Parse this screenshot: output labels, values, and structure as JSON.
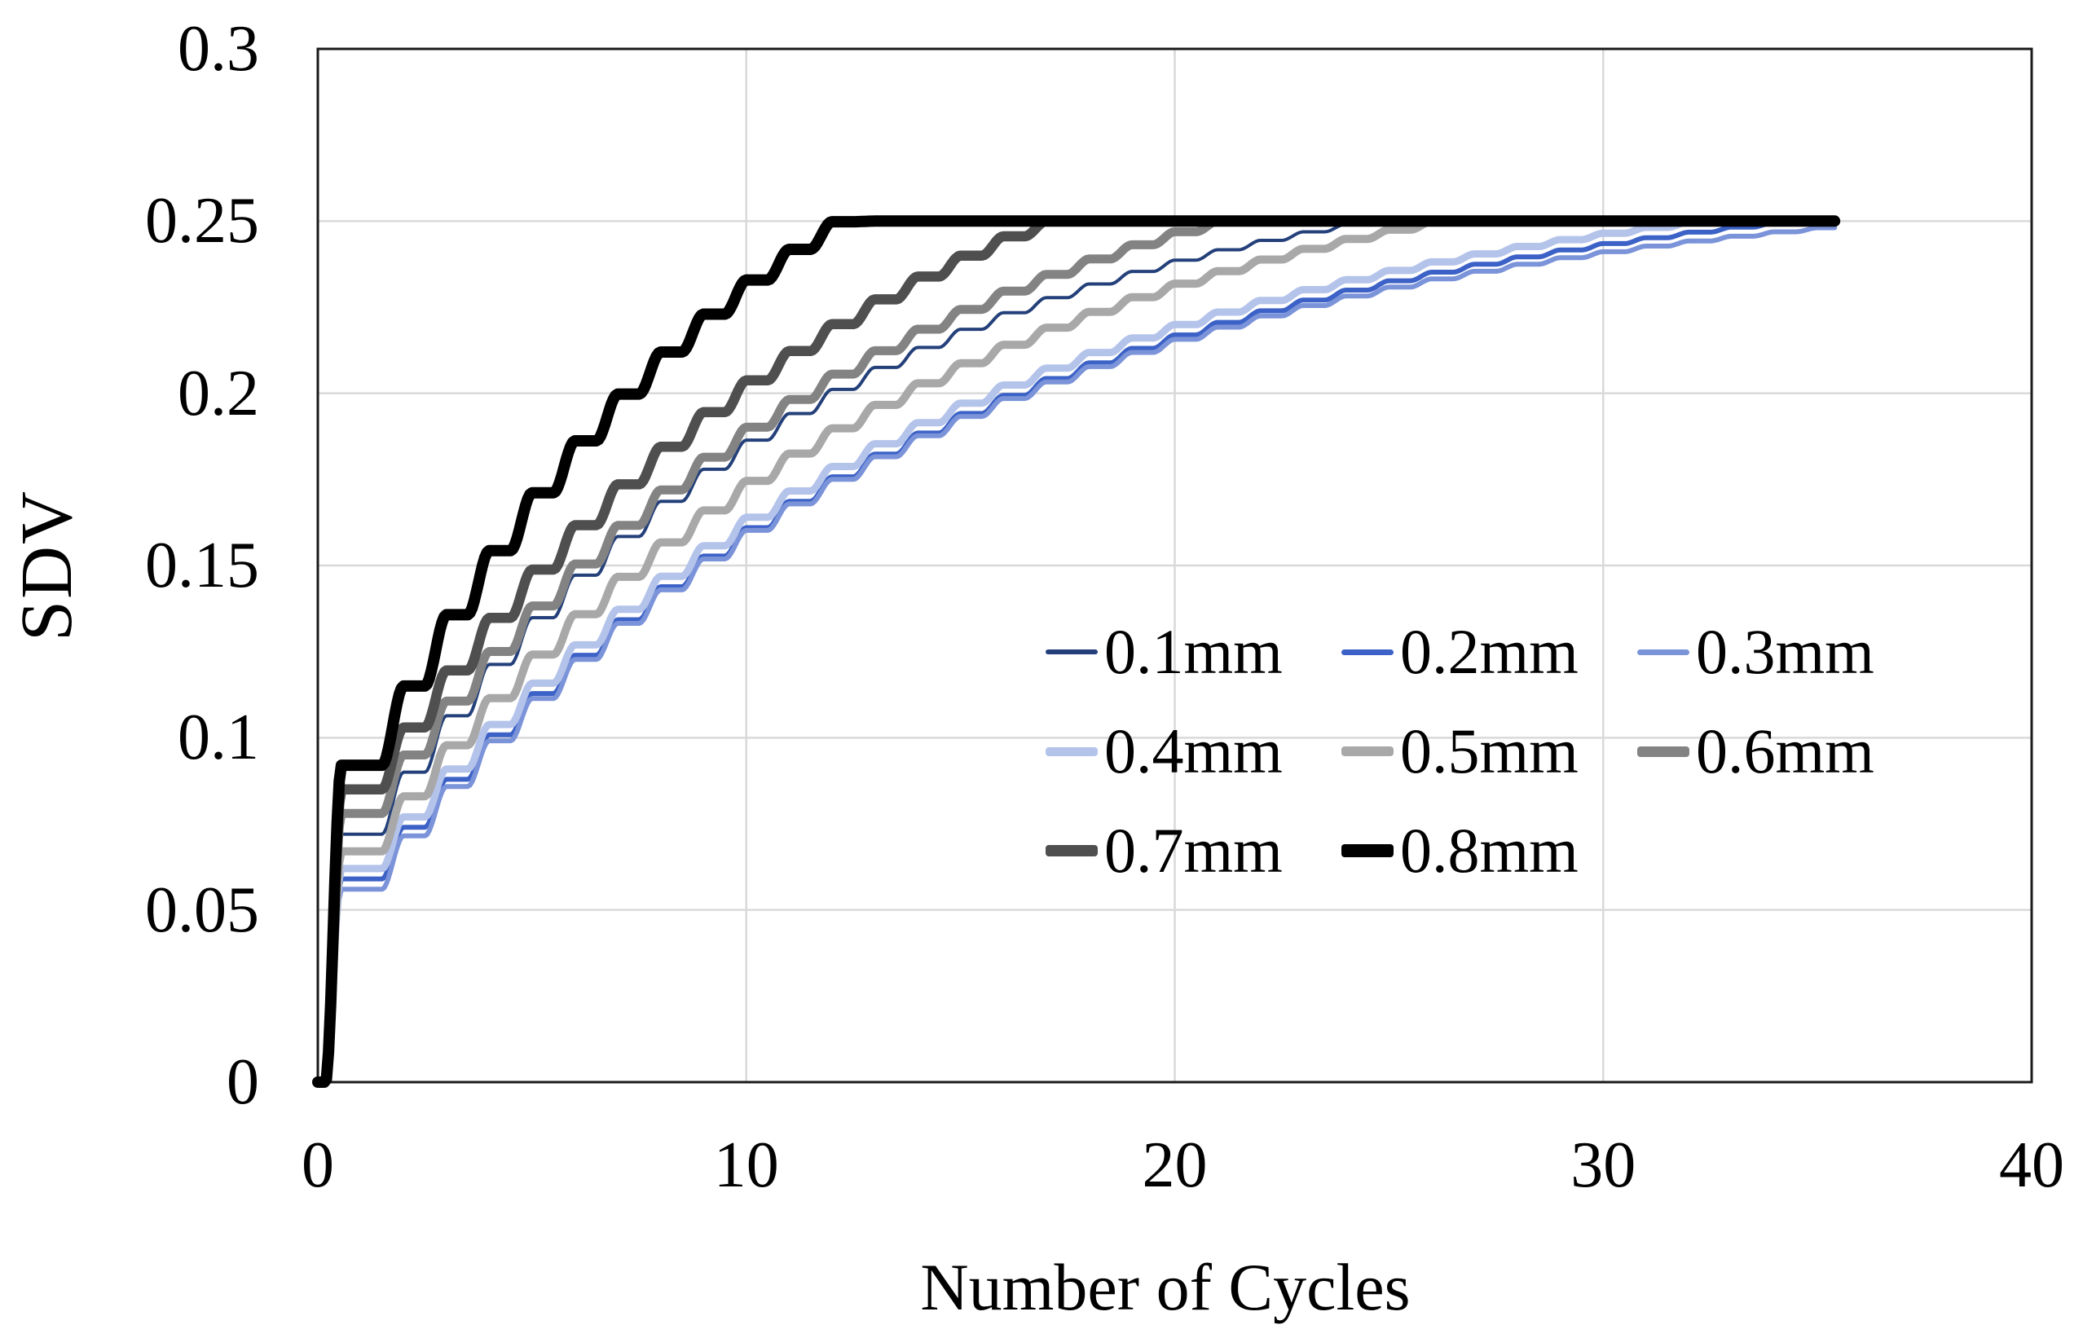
{
  "figure": {
    "background": "#ffffff"
  },
  "chart_data": {
    "type": "line",
    "title": "",
    "xlabel": "Number of Cycles",
    "ylabel": "SDV",
    "x_axis": {
      "min": 0,
      "max": 40,
      "ticks": [
        {
          "v": 0,
          "label": "0"
        },
        {
          "v": 10,
          "label": "10"
        },
        {
          "v": 20,
          "label": "20"
        },
        {
          "v": 30,
          "label": "30"
        },
        {
          "v": 40,
          "label": "40"
        }
      ],
      "grid_values": [
        10,
        20,
        30
      ]
    },
    "y_axis": {
      "min": 0,
      "max": 0.3,
      "ticks": [
        {
          "v": 0,
          "label": "0"
        },
        {
          "v": 0.05,
          "label": "0.05"
        },
        {
          "v": 0.1,
          "label": "0.1"
        },
        {
          "v": 0.15,
          "label": "0.15"
        },
        {
          "v": 0.2,
          "label": "0.2"
        },
        {
          "v": 0.25,
          "label": "0.25"
        },
        {
          "v": 0.3,
          "label": "0.3"
        }
      ],
      "grid_values": [
        0.05,
        0.1,
        0.15,
        0.2,
        0.25
      ]
    },
    "grid_on": true,
    "grid_color": "#D9D9D9",
    "axis_color": "#1a1a1a",
    "saturation_sdv": 0.25,
    "cycles_plotted": 35.4,
    "curve_style": "rounded staircase: flat within each cycle, smooth rise to next cycle value",
    "series": [
      {
        "label": "0.1mm",
        "color": "#24407A",
        "line_width": 4,
        "swatch_height": 6,
        "first_cycle_sdv": 0.072,
        "second_increment": 0.018,
        "increment_decay": 0.91,
        "plateau_sdv": 0.25,
        "plateau_cycle": 24
      },
      {
        "label": "0.2mm",
        "color": "#3C62C7",
        "line_width": 6,
        "swatch_height": 7,
        "first_cycle_sdv": 0.059,
        "second_increment": 0.015,
        "increment_decay": 0.928,
        "plateau_sdv": 0.25,
        "plateau_cycle": 34
      },
      {
        "label": "0.3mm",
        "color": "#7B93D9",
        "line_width": 6,
        "swatch_height": 7,
        "first_cycle_sdv": 0.056,
        "second_increment": 0.0155,
        "increment_decay": 0.925,
        "plateau_sdv": 0.25,
        "plateau_cycle": 36
      },
      {
        "label": "0.4mm",
        "color": "#B4C3EA",
        "line_width": 9,
        "swatch_height": 11,
        "first_cycle_sdv": 0.062,
        "second_increment": 0.015,
        "increment_decay": 0.928,
        "plateau_sdv": 0.25,
        "plateau_cycle": 32
      },
      {
        "label": "0.5mm",
        "color": "#A8A8A8",
        "line_width": 10,
        "swatch_height": 12,
        "first_cycle_sdv": 0.067,
        "second_increment": 0.016,
        "increment_decay": 0.925,
        "plateau_sdv": 0.25,
        "plateau_cycle": 26
      },
      {
        "label": "0.6mm",
        "color": "#838383",
        "line_width": 11,
        "swatch_height": 13,
        "first_cycle_sdv": 0.078,
        "second_increment": 0.017,
        "increment_decay": 0.92,
        "plateau_sdv": 0.25,
        "plateau_cycle": 21
      },
      {
        "label": "0.7mm",
        "color": "#4F4F4F",
        "line_width": 12.5,
        "swatch_height": 14,
        "first_cycle_sdv": 0.085,
        "second_increment": 0.018,
        "increment_decay": 0.92,
        "plateau_sdv": 0.25,
        "plateau_cycle": 17
      },
      {
        "label": "0.8mm",
        "color": "#000000",
        "line_width": 14,
        "swatch_height": 16,
        "first_cycle_sdv": 0.092,
        "second_increment": 0.023,
        "increment_decay": 0.9,
        "plateau_sdv": 0.25,
        "plateau_cycle": 13
      }
    ],
    "legend": {
      "position": "inside-plot-right",
      "rows": [
        [
          "0.1mm",
          "0.2mm",
          "0.3mm"
        ],
        [
          "0.4mm",
          "0.5mm",
          "0.6mm"
        ],
        [
          "0.7mm",
          "0.8mm"
        ]
      ]
    }
  }
}
